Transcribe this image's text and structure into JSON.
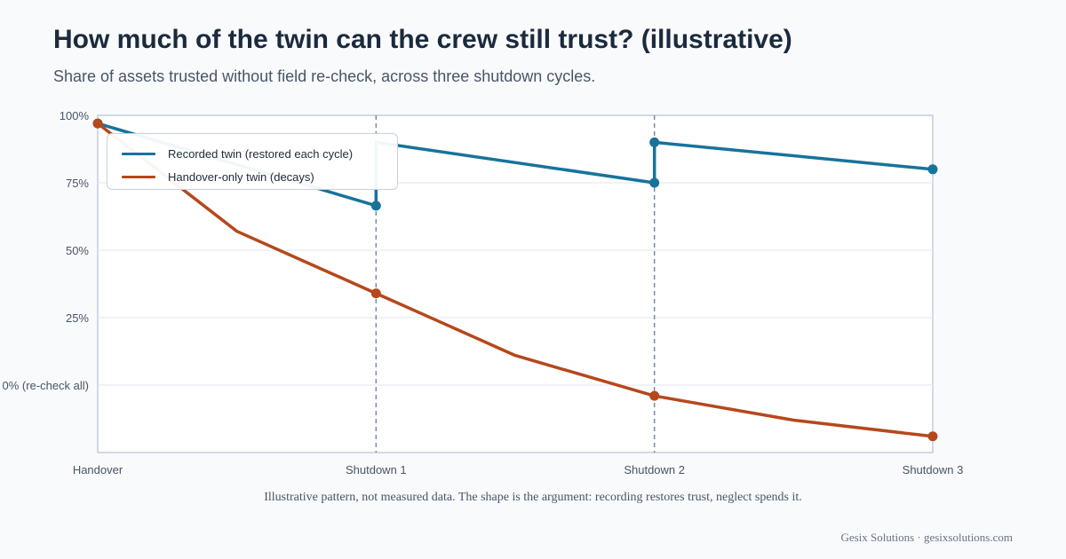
{
  "header": {
    "title": "How much of the twin can the crew still trust? (illustrative)",
    "subtitle": "Share of assets trusted without field re-check, across three shutdown cycles."
  },
  "caption": "Illustrative pattern, not measured data. The shape is the argument: recording restores trust, neglect spends it.",
  "footer": "Gesix Solutions · gesixsolutions.com",
  "chart_data": {
    "type": "line",
    "categories": [
      "Handover",
      "Shutdown 1",
      "Shutdown 2",
      "Shutdown 3"
    ],
    "x_ticks": [
      {
        "x": 0,
        "label": "Handover"
      },
      {
        "x": 1,
        "label": "Shutdown 1"
      },
      {
        "x": 2,
        "label": "Shutdown 2"
      },
      {
        "x": 3,
        "label": "Shutdown 3"
      }
    ],
    "y_ticks": [
      {
        "y": 100,
        "label": "100%"
      },
      {
        "y": 75,
        "label": "75%"
      },
      {
        "y": 50,
        "label": "50%"
      },
      {
        "y": 25,
        "label": "25%"
      },
      {
        "y": 0,
        "label": "0% (re-check all)"
      }
    ],
    "xlim": [
      0,
      3
    ],
    "ylim": [
      -25,
      100
    ],
    "grid": true,
    "vertical_markers": [
      1,
      2
    ],
    "legend_position": "top-left",
    "series": [
      {
        "name": "Recorded twin (restored each cycle)",
        "color": "#17739b",
        "points": [
          {
            "x": 0,
            "y": 97,
            "marker": true
          },
          {
            "x": 1,
            "y": 66.5,
            "marker": true
          },
          {
            "x": 1,
            "y": 90,
            "marker": false
          },
          {
            "x": 2,
            "y": 75,
            "marker": true
          },
          {
            "x": 2,
            "y": 90,
            "marker": true
          },
          {
            "x": 3,
            "y": 80,
            "marker": true
          }
        ]
      },
      {
        "name": "Handover-only twin (decays)",
        "color": "#b5481c",
        "points": [
          {
            "x": 0,
            "y": 97,
            "marker": true
          },
          {
            "x": 0.5,
            "y": 57,
            "marker": false
          },
          {
            "x": 1,
            "y": 34,
            "marker": true
          },
          {
            "x": 1.5,
            "y": 11,
            "marker": false
          },
          {
            "x": 2,
            "y": -4,
            "marker": true
          },
          {
            "x": 2.5,
            "y": -13,
            "marker": false
          },
          {
            "x": 3,
            "y": -19,
            "marker": true
          }
        ]
      }
    ]
  }
}
